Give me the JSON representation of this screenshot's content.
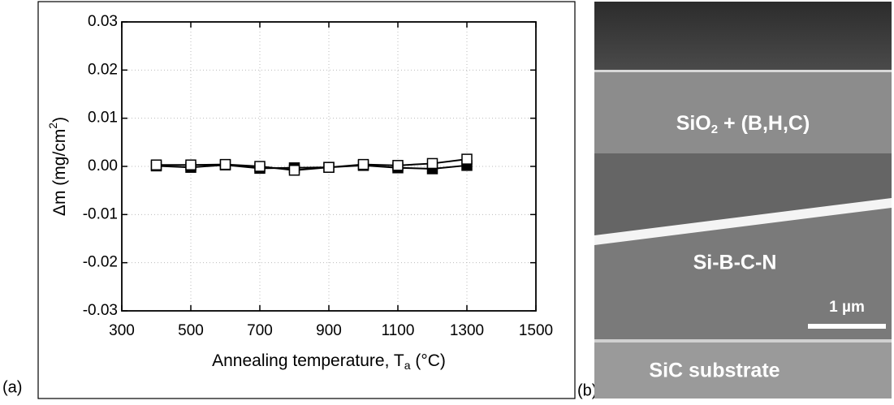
{
  "chart_data": {
    "type": "line",
    "x_label_parts": [
      "Annealing temperature, T",
      "a",
      " (°C)"
    ],
    "y_label_parts": [
      "Δm (mg/cm",
      "2",
      ")"
    ],
    "x": [
      400,
      500,
      600,
      700,
      800,
      900,
      1000,
      1100,
      1200,
      1300
    ],
    "series": [
      {
        "color": "#000000",
        "marker": "filled-square",
        "values": [
          0.0001,
          -0.0002,
          0.0003,
          -0.0004,
          -0.0003,
          -0.0002,
          0.0002,
          -0.0003,
          -0.0005,
          0.0002
        ]
      },
      {
        "color": "#000000",
        "marker": "open-square",
        "values": [
          0.0003,
          0.0003,
          0.0004,
          0,
          -0.0008,
          -0.0002,
          0.0004,
          0.0002,
          0.0006,
          0.0015
        ]
      }
    ],
    "xlim": [
      300,
      1500
    ],
    "xticks": [
      300,
      500,
      700,
      900,
      1100,
      1300,
      1500
    ],
    "ylim": [
      -0.03,
      0.03
    ],
    "yticks": [
      -0.03,
      -0.02,
      -0.01,
      {
        "value": 0,
        "label": "0.00"
      },
      0.01,
      0.02,
      0.03
    ],
    "grid": true
  },
  "panels": {
    "a": "(a)",
    "b": "(b)"
  },
  "image": {
    "layer_top_parts": [
      "SiO",
      "2",
      " + (B,H,C)"
    ],
    "layer_middle": "Si-B-C-N",
    "scale_bar": "1 µm",
    "layer_bottom": "SiC substrate"
  }
}
